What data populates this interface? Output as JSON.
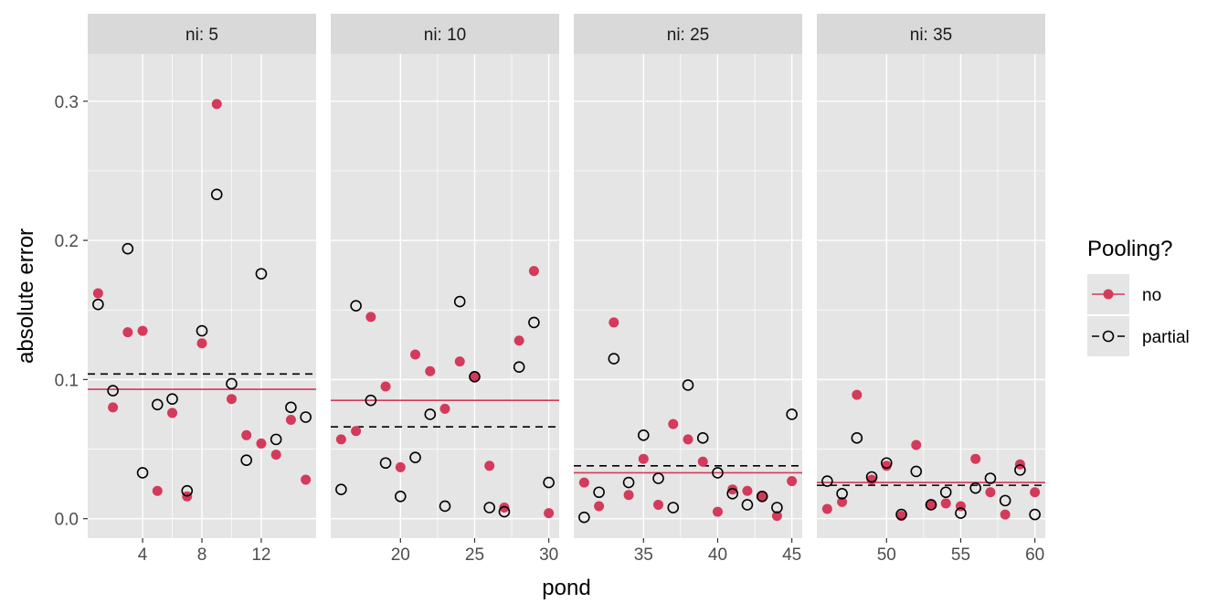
{
  "chart_data": {
    "type": "scatter",
    "xlabel": "pond",
    "ylabel": "absolute error",
    "ylim": [
      -0.014,
      0.334
    ],
    "yticks": [
      0.0,
      0.1,
      0.2,
      0.3
    ],
    "ytick_labels": [
      "0.0",
      "0.1",
      "0.2",
      "0.3"
    ],
    "grid": true,
    "legend": {
      "title": "Pooling?",
      "placement": "right",
      "entries": [
        {
          "key": "no",
          "label": "no",
          "marker": "filled-circle",
          "line": "solid",
          "color": "#d43a5a"
        },
        {
          "key": "partial",
          "label": "partial",
          "marker": "open-circle",
          "line": "dashed",
          "color": "#000000"
        }
      ]
    },
    "colors": {
      "no": "#d43a5a",
      "partial": "#000000",
      "panel_bg": "#e5e5e5",
      "strip_bg": "#d9d9d9",
      "grid": "#ffffff"
    },
    "panels": [
      {
        "strip": "ni: 5",
        "xlim": [
          0.3,
          15.7
        ],
        "xticks": [
          4,
          8,
          12
        ],
        "xtick_labels": [
          "4",
          "8",
          "12"
        ],
        "mean_no": 0.093,
        "mean_partial": 0.104,
        "no": {
          "x": [
            1,
            2,
            3,
            4,
            5,
            6,
            7,
            8,
            9,
            10,
            11,
            12,
            13,
            14,
            15
          ],
          "y": [
            0.162,
            0.08,
            0.134,
            0.135,
            0.02,
            0.076,
            0.016,
            0.126,
            0.298,
            0.086,
            0.06,
            0.054,
            0.046,
            0.071,
            0.028
          ]
        },
        "partial": {
          "x": [
            1,
            2,
            3,
            4,
            5,
            6,
            7,
            8,
            9,
            10,
            11,
            12,
            13,
            14,
            15
          ],
          "y": [
            0.154,
            0.092,
            0.194,
            0.033,
            0.082,
            0.086,
            0.02,
            0.135,
            0.233,
            0.097,
            0.042,
            0.176,
            0.057,
            0.08,
            0.073
          ]
        }
      },
      {
        "strip": "ni: 10",
        "xlim": [
          15.3,
          30.7
        ],
        "xticks": [
          20,
          25,
          30
        ],
        "xtick_labels": [
          "20",
          "25",
          "30"
        ],
        "mean_no": 0.085,
        "mean_partial": 0.066,
        "no": {
          "x": [
            16,
            17,
            18,
            19,
            20,
            21,
            22,
            23,
            24,
            25,
            26,
            27,
            28,
            29,
            30
          ],
          "y": [
            0.057,
            0.063,
            0.145,
            0.095,
            0.037,
            0.118,
            0.106,
            0.079,
            0.113,
            0.102,
            0.038,
            0.008,
            0.128,
            0.178,
            0.004
          ]
        },
        "partial": {
          "x": [
            16,
            17,
            18,
            19,
            20,
            21,
            22,
            23,
            24,
            25,
            26,
            27,
            28,
            29,
            30
          ],
          "y": [
            0.021,
            0.153,
            0.085,
            0.04,
            0.016,
            0.044,
            0.075,
            0.009,
            0.156,
            0.102,
            0.008,
            0.005,
            0.109,
            0.141,
            0.026
          ]
        }
      },
      {
        "strip": "ni: 25",
        "xlim": [
          30.3,
          45.7
        ],
        "xticks": [
          35,
          40,
          45
        ],
        "xtick_labels": [
          "35",
          "40",
          "45"
        ],
        "mean_no": 0.033,
        "mean_partial": 0.038,
        "no": {
          "x": [
            31,
            32,
            33,
            34,
            35,
            36,
            37,
            38,
            39,
            40,
            41,
            42,
            43,
            44,
            45
          ],
          "y": [
            0.026,
            0.009,
            0.141,
            0.017,
            0.043,
            0.01,
            0.068,
            0.057,
            0.041,
            0.005,
            0.021,
            0.02,
            0.016,
            0.002,
            0.027
          ]
        },
        "partial": {
          "x": [
            31,
            32,
            33,
            34,
            35,
            36,
            37,
            38,
            39,
            40,
            41,
            42,
            43,
            44,
            45
          ],
          "y": [
            0.001,
            0.019,
            0.115,
            0.026,
            0.06,
            0.029,
            0.008,
            0.096,
            0.058,
            0.033,
            0.018,
            0.01,
            0.016,
            0.008,
            0.075
          ]
        }
      },
      {
        "strip": "ni: 35",
        "xlim": [
          45.3,
          60.7
        ],
        "xticks": [
          50,
          55,
          60
        ],
        "xtick_labels": [
          "50",
          "55",
          "60"
        ],
        "mean_no": 0.026,
        "mean_partial": 0.024,
        "no": {
          "x": [
            46,
            47,
            48,
            49,
            50,
            51,
            52,
            53,
            54,
            55,
            56,
            57,
            58,
            59,
            60
          ],
          "y": [
            0.007,
            0.012,
            0.089,
            0.028,
            0.038,
            0.002,
            0.053,
            0.01,
            0.011,
            0.009,
            0.043,
            0.019,
            0.003,
            0.039,
            0.019
          ]
        },
        "partial": {
          "x": [
            46,
            47,
            48,
            49,
            50,
            51,
            52,
            53,
            54,
            55,
            56,
            57,
            58,
            59,
            60
          ],
          "y": [
            0.027,
            0.018,
            0.058,
            0.03,
            0.04,
            0.003,
            0.034,
            0.01,
            0.019,
            0.004,
            0.022,
            0.029,
            0.013,
            0.035,
            0.003
          ]
        }
      }
    ]
  }
}
